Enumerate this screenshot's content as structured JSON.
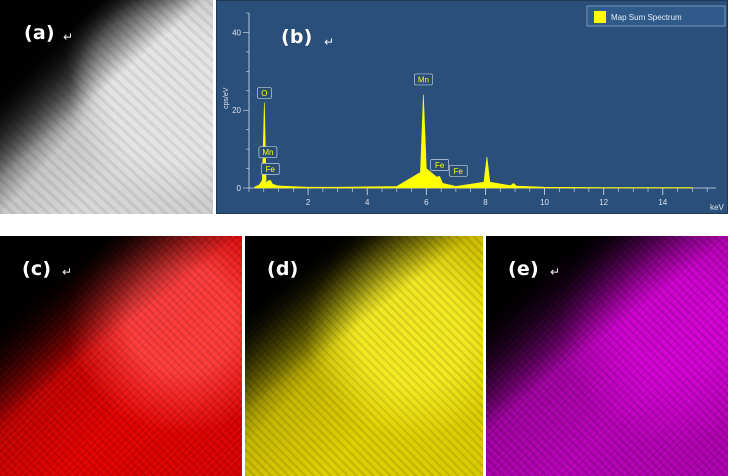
{
  "panels": {
    "a_label": "(a)",
    "b_label": "(b)",
    "c_label": "(c)",
    "d_label": "(d)",
    "e_label": "(e)",
    "return_mark": "↵"
  },
  "chart_data": {
    "type": "line",
    "legend": "Map Sum Spectrum",
    "xlabel": "keV",
    "ylabel": "cps/eV",
    "xlim": [
      0,
      15.8
    ],
    "ylim": [
      0,
      45
    ],
    "x_ticks": [
      2,
      4,
      6,
      8,
      10,
      12,
      14
    ],
    "y_ticks": [
      0,
      20,
      40
    ],
    "series": [
      {
        "name": "Map Sum Spectrum",
        "color": "#ffff00",
        "points": [
          [
            0.2,
            0.3
          ],
          [
            0.35,
            0.8
          ],
          [
            0.45,
            2.0
          ],
          [
            0.52,
            22.0
          ],
          [
            0.58,
            1.0
          ],
          [
            0.64,
            1.8
          ],
          [
            0.72,
            2.0
          ],
          [
            0.8,
            1.0
          ],
          [
            0.95,
            0.6
          ],
          [
            1.1,
            0.5
          ],
          [
            2.0,
            0.2
          ],
          [
            3.0,
            0.2
          ],
          [
            4.0,
            0.3
          ],
          [
            5.0,
            0.4
          ],
          [
            5.8,
            4.0
          ],
          [
            5.9,
            24.0
          ],
          [
            6.0,
            5.0
          ],
          [
            6.35,
            2.8
          ],
          [
            6.45,
            3.0
          ],
          [
            6.55,
            1.2
          ],
          [
            7.0,
            0.4
          ],
          [
            7.95,
            1.5
          ],
          [
            8.05,
            8.0
          ],
          [
            8.15,
            1.5
          ],
          [
            8.85,
            0.6
          ],
          [
            8.95,
            1.2
          ],
          [
            9.05,
            0.5
          ],
          [
            10.0,
            0.2
          ],
          [
            12.0,
            0.1
          ],
          [
            15.0,
            0.1
          ]
        ]
      }
    ],
    "annotations": [
      {
        "text": "O",
        "x": 0.52,
        "y": 23.0
      },
      {
        "text": "Mn",
        "x": 0.64,
        "y": 7.8
      },
      {
        "text": "Fe",
        "x": 0.72,
        "y": 3.5
      },
      {
        "text": "Mn",
        "x": 5.9,
        "y": 26.5
      },
      {
        "text": "Fe",
        "x": 6.45,
        "y": 4.5
      },
      {
        "text": "Fe",
        "x": 7.08,
        "y": 3.0
      }
    ]
  }
}
